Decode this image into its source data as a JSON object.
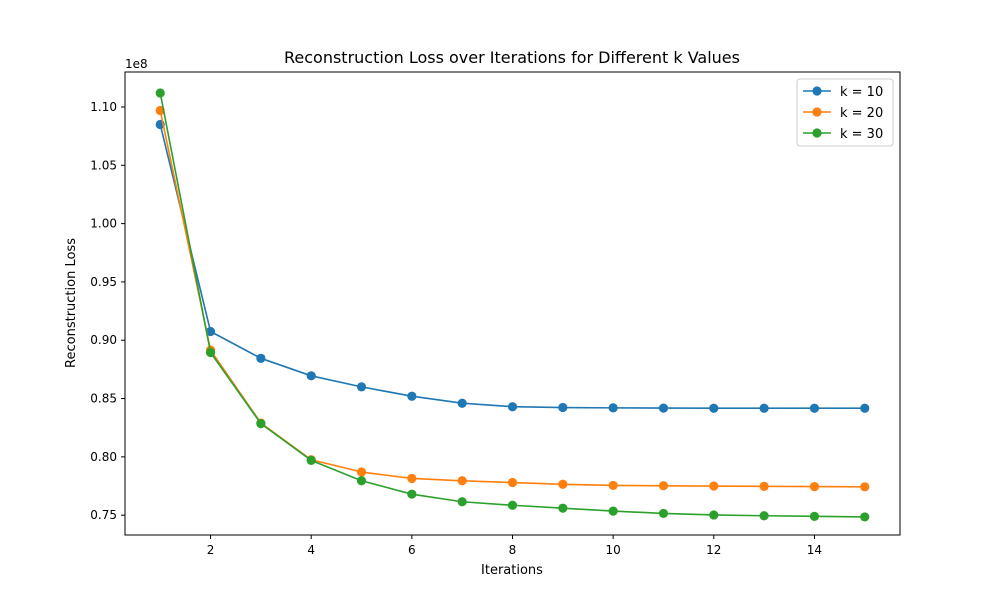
{
  "chart_data": {
    "type": "line",
    "title": "Reconstruction Loss over Iterations for Different k Values",
    "xlabel": "Iterations",
    "ylabel": "Reconstruction Loss",
    "y_offset_label": "1e8",
    "x": [
      1,
      2,
      3,
      4,
      5,
      6,
      7,
      8,
      9,
      10,
      11,
      12,
      13,
      14,
      15
    ],
    "xlim": [
      0.3,
      15.7
    ],
    "ylim": [
      73300000,
      113000000
    ],
    "x_ticks": [
      2,
      4,
      6,
      8,
      10,
      12,
      14
    ],
    "x_tick_labels": [
      "2",
      "4",
      "6",
      "8",
      "10",
      "12",
      "14"
    ],
    "y_ticks": [
      75000000,
      80000000,
      85000000,
      90000000,
      95000000,
      100000000,
      105000000,
      110000000
    ],
    "y_tick_labels": [
      "0.75",
      "0.80",
      "0.85",
      "0.90",
      "0.95",
      "1.00",
      "1.05",
      "1.10"
    ],
    "grid": false,
    "legend_position": "top-right",
    "series": [
      {
        "name": "k = 10",
        "color": "#1f77b4",
        "marker": "circle",
        "values": [
          108500000,
          90750000,
          88450000,
          86950000,
          86000000,
          85200000,
          84600000,
          84300000,
          84230000,
          84200000,
          84180000,
          84170000,
          84170000,
          84170000,
          84170000
        ]
      },
      {
        "name": "k = 20",
        "color": "#ff7f0e",
        "marker": "circle",
        "values": [
          109700000,
          89150000,
          82900000,
          79750000,
          78700000,
          78150000,
          77950000,
          77800000,
          77650000,
          77550000,
          77520000,
          77500000,
          77470000,
          77450000,
          77430000
        ]
      },
      {
        "name": "k = 30",
        "color": "#2ca02c",
        "marker": "circle",
        "values": [
          111200000,
          88950000,
          82850000,
          79700000,
          77950000,
          76800000,
          76150000,
          75850000,
          75600000,
          75350000,
          75150000,
          75020000,
          74950000,
          74900000,
          74850000
        ]
      }
    ]
  }
}
